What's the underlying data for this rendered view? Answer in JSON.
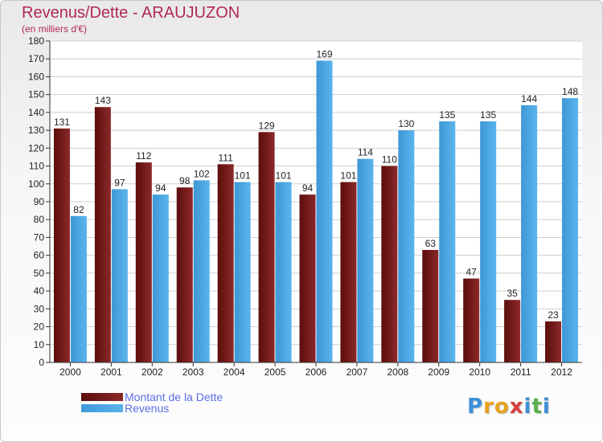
{
  "chart_data": {
    "type": "bar",
    "title": "Revenus/Dette - ARAUJUZON",
    "subtitle": "(en milliers d'€)",
    "categories": [
      "2000",
      "2001",
      "2002",
      "2003",
      "2004",
      "2005",
      "2006",
      "2007",
      "2008",
      "2009",
      "2010",
      "2011",
      "2012"
    ],
    "series": [
      {
        "name": "Montant de la Dette",
        "color": "#7a1c1c",
        "values": [
          131,
          143,
          112,
          98,
          111,
          129,
          94,
          101,
          110,
          63,
          47,
          35,
          23
        ]
      },
      {
        "name": "Revenus",
        "color": "#4aa8e6",
        "values": [
          82,
          97,
          94,
          102,
          101,
          101,
          169,
          114,
          130,
          135,
          135,
          144,
          148
        ]
      }
    ],
    "ylim": [
      0,
      180
    ],
    "ytick_step": 10,
    "grid": true,
    "legend": "bottom-left"
  },
  "logo": {
    "letters": [
      "P",
      "r",
      "o",
      "x",
      "i",
      "t",
      "i"
    ],
    "colors": [
      "#3d8fd8",
      "#e8a21c",
      "#e8a21c",
      "#d84040",
      "#3d8fd8",
      "#5ab04a",
      "#3d8fd8"
    ]
  }
}
